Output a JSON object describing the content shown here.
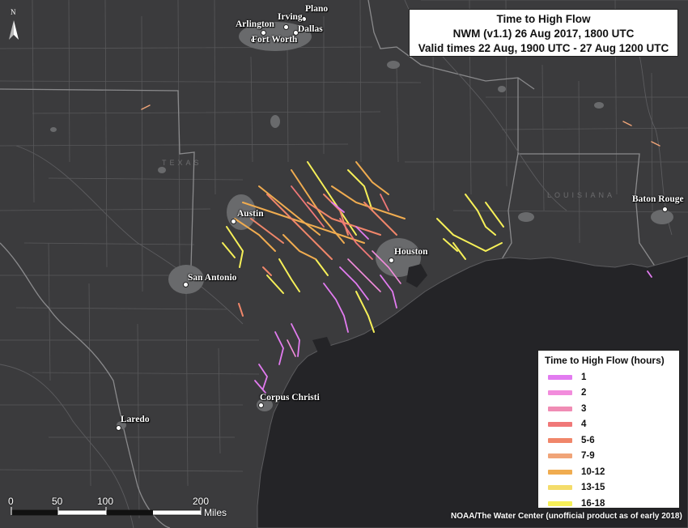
{
  "title": {
    "line1": "Time to High Flow",
    "line2": "NWM (v1.1) 26 Aug 2017, 1800 UTC",
    "line3": "Valid times 22 Aug, 1900 UTC - 27 Aug 1200 UTC"
  },
  "legend": {
    "title": "Time to High Flow (hours)",
    "items": [
      {
        "label": "1",
        "color": "#e27bf0"
      },
      {
        "label": "2",
        "color": "#f28cdc"
      },
      {
        "label": "3",
        "color": "#f08cb4"
      },
      {
        "label": "4",
        "color": "#f07878"
      },
      {
        "label": "5-6",
        "color": "#f0866a"
      },
      {
        "label": "7-9",
        "color": "#f0a478"
      },
      {
        "label": "10-12",
        "color": "#f0ac50"
      },
      {
        "label": "13-15",
        "color": "#f4dc6a"
      },
      {
        "label": "16-18",
        "color": "#f6f058"
      }
    ]
  },
  "cities": {
    "plano": "Plano",
    "irving": "Irving",
    "arlington": "Arlington",
    "dallas": "Dallas",
    "fort_worth": "Fort Worth",
    "austin": "Austin",
    "san_antonio": "San Antonio",
    "houston": "Houston",
    "baton_rouge": "Baton Rouge",
    "corpus_christi": "Corpus Christi",
    "laredo": "Laredo"
  },
  "state_labels": {
    "texas": "TEXAS",
    "louisiana": "LOUISIANA"
  },
  "north_arrow": {
    "icon": "north-arrow-icon",
    "letter": "N"
  },
  "scale_bar": {
    "ticks": [
      "0",
      "50",
      "100",
      "200"
    ],
    "unit": "Miles"
  },
  "credit": "NOAA/The Water Center (unofficial product as of early 2018)",
  "colors": {
    "land": "#3b3b3d",
    "water": "#242427",
    "borders": "#707072",
    "urban": "#6a6a6c"
  }
}
